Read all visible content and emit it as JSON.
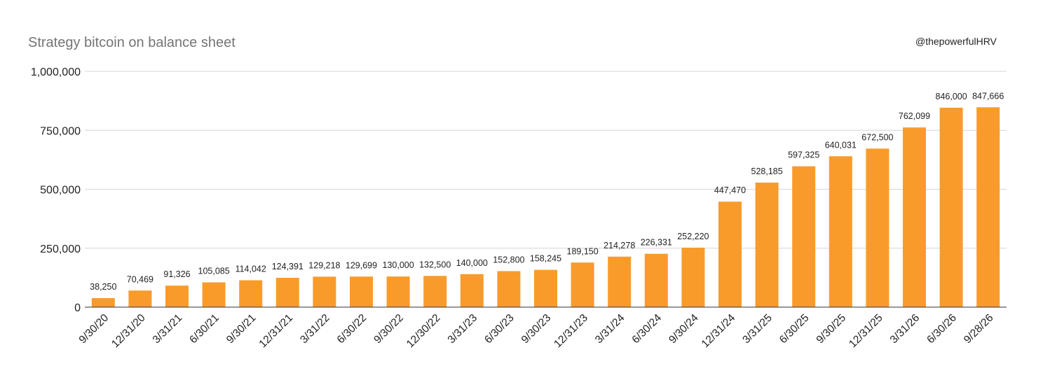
{
  "chart_data": {
    "type": "bar",
    "title": "Strategy bitcoin on balance sheet",
    "watermark": "@thepowerfulHRV",
    "xlabel": "",
    "ylabel": "",
    "ylim": [
      0,
      1000000
    ],
    "yticks": [
      0,
      250000,
      500000,
      750000,
      1000000
    ],
    "ytick_labels": [
      "0",
      "250,000",
      "500,000",
      "750,000",
      "1,000,000"
    ],
    "grid": true,
    "legend": "none",
    "bar_color": "#F99B2B",
    "categories": [
      "9/30/20",
      "12/31/20",
      "3/31/21",
      "6/30/21",
      "9/30/21",
      "12/31/21",
      "3/31/22",
      "6/30/22",
      "9/30/22",
      "12/30/22",
      "3/31/23",
      "6/30/23",
      "9/30/23",
      "12/31/23",
      "3/31/24",
      "6/30/24",
      "9/30/24",
      "12/31/24",
      "3/31/25",
      "6/30/25",
      "9/30/25",
      "12/31/25",
      "3/31/26",
      "6/30/26",
      "9/28/26"
    ],
    "values": [
      38250,
      70469,
      91326,
      105085,
      114042,
      124391,
      129218,
      129699,
      130000,
      132500,
      140000,
      152800,
      158245,
      189150,
      214278,
      226331,
      252220,
      447470,
      528185,
      597325,
      640031,
      672500,
      762099,
      846000,
      847666
    ],
    "value_labels": [
      "38,250",
      "70,469",
      "91,326",
      "105,085",
      "114,042",
      "124,391",
      "129,218",
      "129,699",
      "130,000",
      "132,500",
      "140,000",
      "152,800",
      "158,245",
      "189,150",
      "214,278",
      "226,331",
      "252,220",
      "447,470",
      "528,185",
      "597,325",
      "640,031",
      "672,500",
      "762,099",
      "846,000",
      "847,666"
    ]
  }
}
